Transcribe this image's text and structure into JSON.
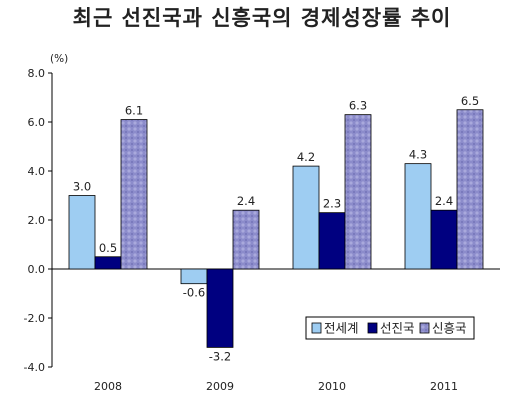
{
  "chart_data": {
    "type": "bar",
    "title": "최근 선진국과 신흥국의 경제성장률 추이",
    "unit": "(%)",
    "categories": [
      "2008",
      "2009",
      "2010",
      "2011"
    ],
    "series": [
      {
        "name": "전세계",
        "values": [
          3.0,
          -0.6,
          4.2,
          4.3
        ],
        "color": "#9ecdf2"
      },
      {
        "name": "선진국",
        "values": [
          0.5,
          -3.2,
          2.3,
          2.4
        ],
        "color": "#000080"
      },
      {
        "name": "신흥국",
        "values": [
          6.1,
          2.4,
          6.3,
          6.5
        ],
        "color": "#8b8bc8"
      }
    ],
    "y_ticks": [
      "8.0",
      "6.0",
      "4.0",
      "2.0",
      "0.0",
      "-2.0",
      "-4.0"
    ],
    "ylim": [
      -4,
      8
    ],
    "grid": false,
    "legend_position": "bottom-right"
  }
}
